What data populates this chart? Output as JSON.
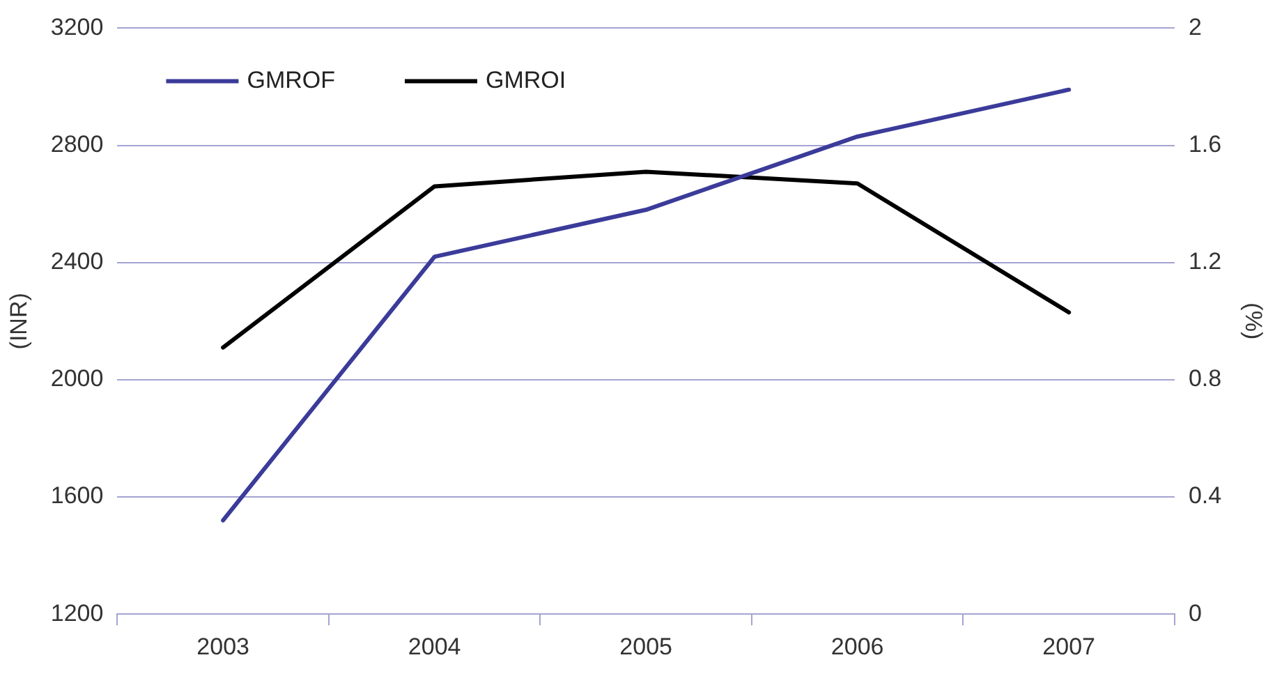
{
  "chart_data": {
    "type": "line",
    "categories": [
      "2003",
      "2004",
      "2005",
      "2006",
      "2007"
    ],
    "series": [
      {
        "name": "GMROF",
        "color": "#3b3b9a",
        "values": [
          1520,
          2420,
          2580,
          2830,
          2990
        ]
      },
      {
        "name": "GMROI",
        "color": "#000000",
        "values": [
          0.91,
          1.46,
          1.51,
          1.47,
          1.03
        ],
        "axis": "y2"
      }
    ],
    "ylabel": "(INR)",
    "y2label": "(%)",
    "ylim": [
      1200,
      3200
    ],
    "yticks": [
      1200,
      1600,
      2000,
      2400,
      2800,
      3200
    ],
    "y2lim": [
      0,
      2
    ],
    "y2ticks": [
      0,
      0.4,
      0.8,
      1.2,
      1.6,
      2
    ],
    "grid": "y",
    "legend": "top left",
    "marker": "none",
    "line_style": "solid"
  }
}
